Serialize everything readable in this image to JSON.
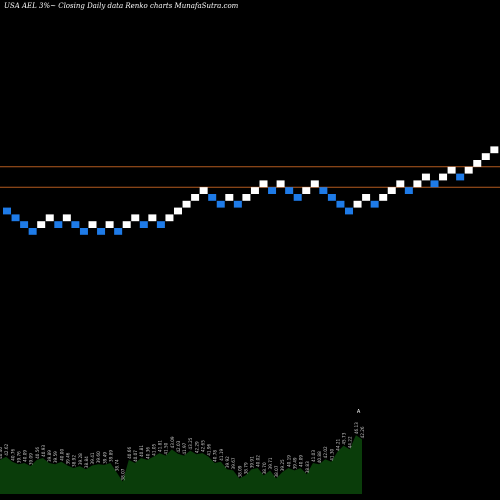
{
  "header": {
    "title": "USA AEL  3%~  Closing Daily data  Renko  charts MunafaSutra.com"
  },
  "chart_data": {
    "type": "renko",
    "title": "USA AEL  3%~  Closing Daily data  Renko  charts MunafaSutra.com",
    "colors": {
      "background": "#000000",
      "up_brick": "#ffffff",
      "down_brick": "#1e7be8",
      "reference_line": "#b35a1f",
      "volume_fill": "#0a3d0a",
      "volume_label": "#cccccc",
      "marker": "#ffffff"
    },
    "bricks": [
      {
        "level": 0,
        "dir": "down"
      },
      {
        "level": -1,
        "dir": "down"
      },
      {
        "level": -2,
        "dir": "down"
      },
      {
        "level": -3,
        "dir": "down"
      },
      {
        "level": -2,
        "dir": "up"
      },
      {
        "level": -1,
        "dir": "up"
      },
      {
        "level": -2,
        "dir": "down"
      },
      {
        "level": -1,
        "dir": "up"
      },
      {
        "level": -2,
        "dir": "down"
      },
      {
        "level": -3,
        "dir": "down"
      },
      {
        "level": -2,
        "dir": "up"
      },
      {
        "level": -3,
        "dir": "down"
      },
      {
        "level": -2,
        "dir": "up"
      },
      {
        "level": -3,
        "dir": "down"
      },
      {
        "level": -2,
        "dir": "up"
      },
      {
        "level": -1,
        "dir": "up"
      },
      {
        "level": -2,
        "dir": "down"
      },
      {
        "level": -1,
        "dir": "up"
      },
      {
        "level": -2,
        "dir": "down"
      },
      {
        "level": -1,
        "dir": "up"
      },
      {
        "level": 0,
        "dir": "up"
      },
      {
        "level": 1,
        "dir": "up"
      },
      {
        "level": 2,
        "dir": "up"
      },
      {
        "level": 3,
        "dir": "up"
      },
      {
        "level": 2,
        "dir": "down"
      },
      {
        "level": 1,
        "dir": "down"
      },
      {
        "level": 2,
        "dir": "up"
      },
      {
        "level": 1,
        "dir": "down"
      },
      {
        "level": 2,
        "dir": "up"
      },
      {
        "level": 3,
        "dir": "up"
      },
      {
        "level": 4,
        "dir": "up"
      },
      {
        "level": 3,
        "dir": "down"
      },
      {
        "level": 4,
        "dir": "up"
      },
      {
        "level": 3,
        "dir": "down"
      },
      {
        "level": 2,
        "dir": "down"
      },
      {
        "level": 3,
        "dir": "up"
      },
      {
        "level": 4,
        "dir": "up"
      },
      {
        "level": 3,
        "dir": "down"
      },
      {
        "level": 2,
        "dir": "down"
      },
      {
        "level": 1,
        "dir": "down"
      },
      {
        "level": 0,
        "dir": "down"
      },
      {
        "level": 1,
        "dir": "up"
      },
      {
        "level": 2,
        "dir": "up"
      },
      {
        "level": 1,
        "dir": "down"
      },
      {
        "level": 2,
        "dir": "up"
      },
      {
        "level": 3,
        "dir": "up"
      },
      {
        "level": 4,
        "dir": "up"
      },
      {
        "level": 3,
        "dir": "down"
      },
      {
        "level": 4,
        "dir": "up"
      },
      {
        "level": 5,
        "dir": "up"
      },
      {
        "level": 4,
        "dir": "down"
      },
      {
        "level": 5,
        "dir": "up"
      },
      {
        "level": 6,
        "dir": "up"
      },
      {
        "level": 5,
        "dir": "down"
      },
      {
        "level": 6,
        "dir": "up"
      },
      {
        "level": 7,
        "dir": "up"
      },
      {
        "level": 8,
        "dir": "up"
      },
      {
        "level": 9,
        "dir": "up"
      }
    ],
    "reference_lines": [
      6.5,
      3.5
    ],
    "volume_labels": [
      "40.40",
      "42.62",
      "40.76",
      "39.76",
      "40.09",
      "39.09",
      "40.56",
      "40.93",
      "39.89",
      "39.59",
      "40.00",
      "39.46",
      "38.92",
      "39.28",
      "38.84",
      "39.41",
      "39.60",
      "39.49",
      "39.89",
      "38.74",
      "38.07",
      "40.66",
      "40.07",
      "40.81",
      "40.36",
      "41.05",
      "41.81",
      "41.50",
      "43.09",
      "42.03",
      "41.97",
      "43.25",
      "42.29",
      "42.65",
      "41.96",
      "40.78",
      "41.19",
      "39.92",
      "39.67",
      "38.09",
      "38.79",
      "39.91",
      "40.02",
      "38.70",
      "39.71",
      "38.07",
      "39.25",
      "40.19",
      "39.49",
      "40.09",
      "38.83",
      "41.03",
      "40.88",
      "42.02",
      "41.30",
      "44.21",
      "45.73",
      "44.22",
      "46.13",
      "42.26"
    ],
    "volume_heights": [
      0.55,
      0.6,
      0.52,
      0.48,
      0.5,
      0.45,
      0.55,
      0.58,
      0.5,
      0.48,
      0.52,
      0.46,
      0.42,
      0.45,
      0.4,
      0.46,
      0.48,
      0.47,
      0.5,
      0.35,
      0.2,
      0.55,
      0.5,
      0.58,
      0.55,
      0.6,
      0.66,
      0.62,
      0.72,
      0.65,
      0.62,
      0.7,
      0.64,
      0.66,
      0.6,
      0.5,
      0.52,
      0.4,
      0.38,
      0.25,
      0.3,
      0.4,
      0.42,
      0.3,
      0.38,
      0.25,
      0.35,
      0.42,
      0.38,
      0.42,
      0.32,
      0.5,
      0.48,
      0.56,
      0.52,
      0.68,
      0.78,
      0.72,
      0.95,
      0.88
    ],
    "marker": "A"
  }
}
